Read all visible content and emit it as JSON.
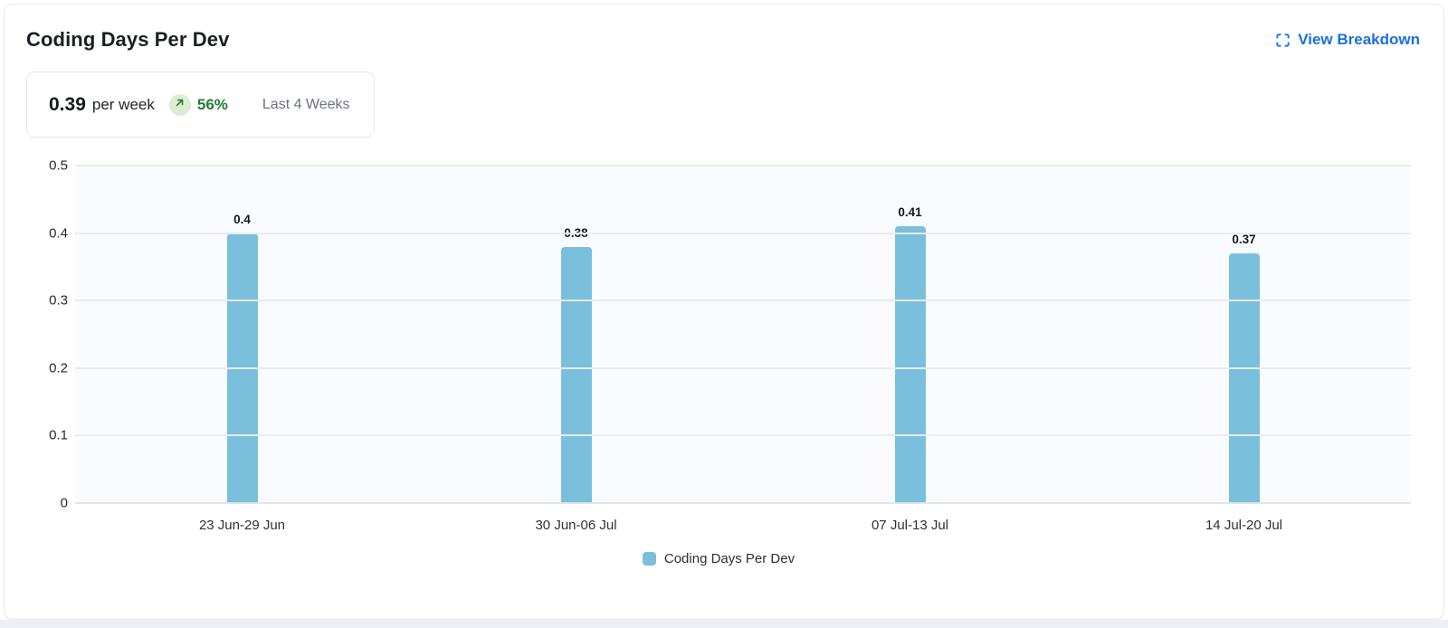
{
  "card": {
    "title": "Coding Days Per Dev",
    "action_label": "View Breakdown"
  },
  "summary": {
    "value": "0.39",
    "unit": "per week",
    "trend_direction": "up",
    "trend_icon": "arrow-up-right",
    "change_percent": "56%",
    "period": "Last 4 Weeks"
  },
  "colors": {
    "bar": "#7abfdb",
    "accent_blue": "#1a6fe0",
    "positive_green": "#1e7e2e",
    "badge_bg": "#dcedd5",
    "plot_bg": "#fafbfe"
  },
  "chart_data": {
    "type": "bar",
    "title": "Coding Days Per Dev",
    "categories": [
      "23 Jun-29 Jun",
      "30 Jun-06 Jul",
      "07 Jul-13 Jul",
      "14 Jul-20 Jul"
    ],
    "values": [
      0.4,
      0.38,
      0.41,
      0.37
    ],
    "bar_labels": [
      "0.4",
      "0.38",
      "0.41",
      "0.37"
    ],
    "series_name": "Coding Days Per Dev",
    "xlabel": "",
    "ylabel": "",
    "ylim": [
      0,
      0.5
    ],
    "yticks": [
      0,
      0.1,
      0.2,
      0.3,
      0.4,
      0.5
    ],
    "ytick_labels": [
      "0",
      "0.1",
      "0.2",
      "0.3",
      "0.4",
      "0.5"
    ],
    "grid": true,
    "legend_position": "bottom"
  },
  "legend": {
    "label": "Coding Days Per Dev"
  }
}
